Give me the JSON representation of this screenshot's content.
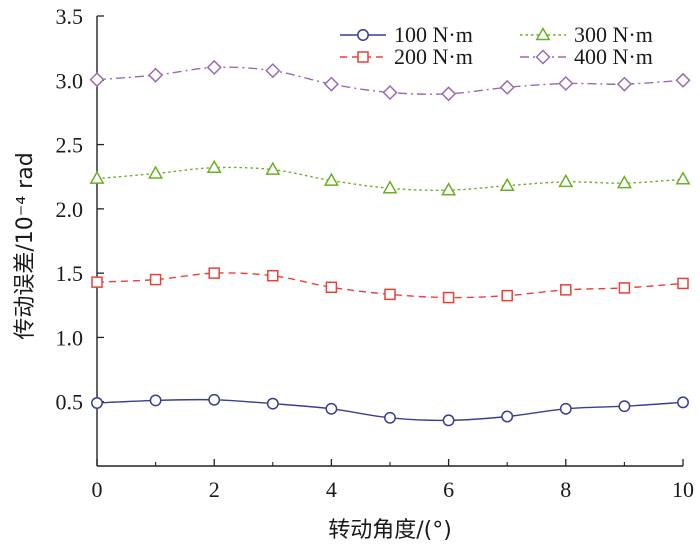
{
  "chart_data": {
    "type": "line",
    "xlabel": "转动角度/(°)",
    "ylabel": "传动误差/10⁻⁴ rad",
    "xlim": [
      0,
      10
    ],
    "ylim": [
      0,
      3.5
    ],
    "x_ticks": [
      0,
      2,
      4,
      6,
      8,
      10
    ],
    "y_ticks": [
      0.5,
      1.0,
      1.5,
      2.0,
      2.5,
      3.0,
      3.5
    ],
    "x_tick_labels": [
      "0",
      "2",
      "4",
      "6",
      "8",
      "10"
    ],
    "y_tick_labels": [
      "0.5",
      "1.0",
      "1.5",
      "2.0",
      "2.5",
      "3.0",
      "3.5"
    ],
    "grid": false,
    "legend_position": "top-right",
    "x": [
      0,
      1,
      2,
      3,
      4,
      5,
      6,
      7,
      8,
      9,
      10
    ],
    "series": [
      {
        "name": "100 N·m",
        "color": "#3a3f8f",
        "marker": "circle",
        "line_style": "solid",
        "values": [
          0.49,
          0.51,
          0.515,
          0.485,
          0.445,
          0.375,
          0.355,
          0.385,
          0.445,
          0.465,
          0.495
        ]
      },
      {
        "name": "200 N·m",
        "color": "#e8413a",
        "marker": "square",
        "line_style": "dashed",
        "values": [
          1.43,
          1.45,
          1.5,
          1.48,
          1.39,
          1.335,
          1.31,
          1.325,
          1.37,
          1.385,
          1.42
        ]
      },
      {
        "name": "300 N·m",
        "color": "#6ab023",
        "marker": "triangle",
        "line_style": "dotted",
        "values": [
          2.235,
          2.275,
          2.32,
          2.305,
          2.22,
          2.16,
          2.145,
          2.18,
          2.21,
          2.2,
          2.23
        ]
      },
      {
        "name": "400 N·m",
        "color": "#9a6bb0",
        "marker": "diamond",
        "line_style": "dashdot",
        "values": [
          3.005,
          3.04,
          3.1,
          3.075,
          2.97,
          2.905,
          2.895,
          2.945,
          2.975,
          2.97,
          3.0
        ]
      }
    ]
  }
}
